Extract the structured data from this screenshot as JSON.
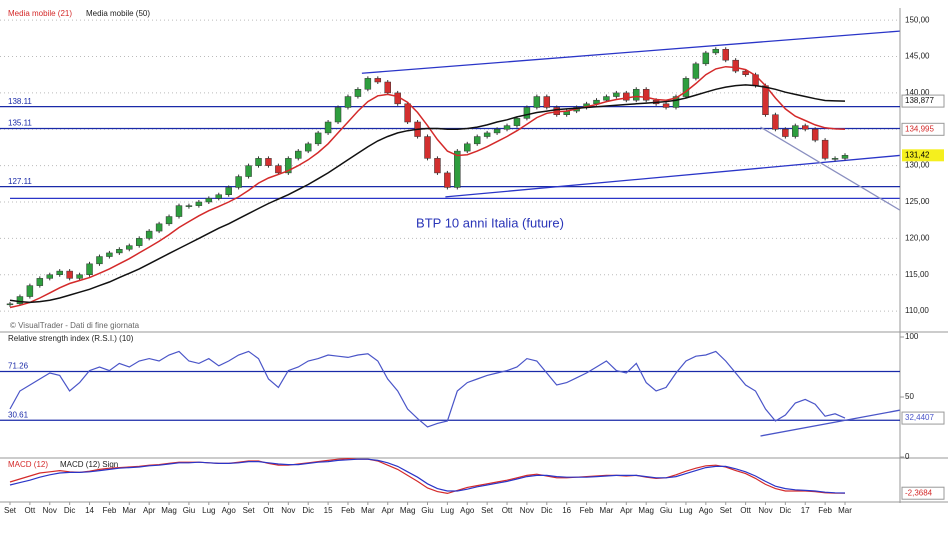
{
  "chart_data": [
    {
      "type": "candlestick",
      "legend": [
        "Media mobile (21)",
        "Media mobile (50)"
      ],
      "annotation": "BTP 10 anni Italia (future)",
      "source": "© VisualTrader - Dati di fine giornata",
      "categories": [
        "Set",
        null,
        "Ott",
        null,
        "Nov",
        null,
        "Dic",
        null,
        "14",
        null,
        "Feb",
        null,
        "Mar",
        null,
        "Apr",
        null,
        "Mag",
        null,
        "Giu",
        null,
        "Lug",
        null,
        "Ago",
        null,
        "Set",
        null,
        "Ott",
        null,
        "Nov",
        null,
        "Dic",
        null,
        "15",
        null,
        "Feb",
        null,
        "Mar",
        null,
        "Apr",
        null,
        "Mag",
        null,
        "Giu",
        null,
        "Lug",
        null,
        "Ago",
        null,
        "Set",
        null,
        "Ott",
        null,
        "Nov",
        null,
        "Dic",
        null,
        "16",
        null,
        "Feb",
        null,
        "Mar",
        null,
        "Apr",
        null,
        "Mag",
        null,
        "Giu",
        null,
        "Lug",
        null,
        "Ago",
        null,
        "Set",
        null,
        "Ott",
        null,
        "Nov",
        null,
        "Dic",
        null,
        "17",
        null,
        "Feb",
        null,
        "Mar"
      ],
      "values": [
        111,
        112,
        113.5,
        114.5,
        115,
        115.5,
        114.5,
        115,
        116.5,
        117.5,
        118,
        118.5,
        119,
        120,
        121,
        122,
        123,
        124.5,
        124.5,
        125,
        125.5,
        126,
        127,
        128.5,
        130,
        131,
        130,
        129,
        131,
        132,
        133,
        134.5,
        136,
        138,
        139.5,
        140.5,
        142,
        141.5,
        140,
        138.5,
        136,
        134,
        131,
        129,
        127,
        132,
        133,
        134,
        134.5,
        135,
        135.5,
        136.5,
        138,
        139.5,
        138,
        137,
        137.5,
        138,
        138.5,
        139,
        139.5,
        140,
        139,
        140.5,
        139,
        138.5,
        138,
        139.5,
        142,
        144,
        145.5,
        146,
        144.5,
        143,
        142.5,
        141,
        137,
        135,
        134,
        135.5,
        135,
        133.5,
        131,
        131,
        131.42
      ],
      "last_label": "131,42",
      "up_color": "#2e9e3e",
      "down_color": "#d32f2f",
      "series": [
        {
          "name": "Media mobile (21)",
          "color": "#d42a2a",
          "last_label": "134,995",
          "values": [
            110.5,
            110.8,
            111.2,
            111.8,
            112.5,
            113.2,
            113.8,
            114.2,
            114.6,
            115.2,
            115.8,
            116.5,
            117.2,
            118,
            118.8,
            119.6,
            120.5,
            121.5,
            122.3,
            123.1,
            123.8,
            124.4,
            125,
            125.7,
            126.6,
            127.6,
            128.3,
            128.8,
            129.3,
            130,
            130.8,
            131.8,
            133,
            134.5,
            136,
            137.5,
            138.8,
            139.6,
            139.8,
            139.5,
            138.7,
            137.3,
            135.5,
            133.6,
            132,
            131.4,
            131.5,
            132,
            132.6,
            133.3,
            134,
            134.8,
            135.7,
            136.6,
            137.2,
            137.4,
            137.5,
            137.8,
            138.1,
            138.4,
            138.8,
            139.1,
            139.3,
            139.5,
            139.4,
            139.1,
            139,
            139.3,
            140.2,
            141.3,
            142.5,
            143.3,
            143.6,
            143.5,
            143.2,
            142.4,
            141,
            139.3,
            137.8,
            136.8,
            136.2,
            135.6,
            135.2,
            135.05,
            134.995
          ]
        },
        {
          "name": "Media mobile (50)",
          "color": "#111111",
          "last_label": "138,877",
          "values": [
            111.5,
            111.3,
            111.2,
            111.3,
            111.5,
            111.8,
            112.2,
            112.6,
            113,
            113.5,
            114,
            114.6,
            115.2,
            115.8,
            116.5,
            117.2,
            117.9,
            118.6,
            119.3,
            120,
            120.7,
            121.4,
            122,
            122.7,
            123.4,
            124.1,
            124.8,
            125.4,
            126,
            126.7,
            127.4,
            128.2,
            129,
            129.9,
            130.8,
            131.7,
            132.6,
            133.4,
            134,
            134.5,
            134.8,
            135,
            135.1,
            135.1,
            135,
            135,
            135.1,
            135.3,
            135.6,
            136,
            136.3,
            136.7,
            137,
            137.3,
            137.5,
            137.7,
            137.8,
            137.9,
            138,
            138.1,
            138.2,
            138.3,
            138.4,
            138.5,
            138.6,
            138.7,
            138.8,
            139,
            139.3,
            139.7,
            140.1,
            140.5,
            140.8,
            141,
            141.1,
            141,
            140.8,
            140.5,
            140.1,
            139.8,
            139.5,
            139.2,
            138.95,
            138.9,
            138.877
          ]
        }
      ],
      "levels": [
        138.11,
        135.11,
        127.11
      ],
      "level_color": "#1a2aa8",
      "trend_lines": [
        {
          "x": [
            35.4,
            89.5
          ],
          "y": [
            142.7,
            148.5
          ],
          "color": "#2a35c8"
        },
        {
          "x": [
            43.8,
            89.5
          ],
          "y": [
            125.7,
            131.4
          ],
          "color": "#2a35c8"
        },
        {
          "x": [
            0,
            89.5
          ],
          "y": [
            125.5,
            125.5
          ],
          "color": "#2a35c8"
        },
        {
          "x": [
            75.5,
            89.5
          ],
          "y": [
            135.3,
            123.9
          ],
          "color": "#8a8fc0"
        }
      ],
      "ylim": [
        107.4,
        151.4
      ],
      "yticks": [
        {
          "value": 110,
          "label": "110,00"
        },
        {
          "value": 115,
          "label": "115,00"
        },
        {
          "value": 120,
          "label": "120,00"
        },
        {
          "value": 125,
          "label": "125,00"
        },
        {
          "value": 130,
          "label": "130,00"
        },
        {
          "value": 135,
          "label": "135,00"
        },
        {
          "value": 140,
          "label": "140,00"
        },
        {
          "value": 145,
          "label": "145,00"
        },
        {
          "value": 150,
          "label": "150,00"
        }
      ],
      "grid": true
    },
    {
      "type": "line",
      "title": "Relative strength index (R.S.I.) (10)",
      "series": [
        {
          "name": "R.S.I.",
          "color": "#4a55c8",
          "last_label": "32,4407",
          "values": [
            40,
            55,
            60,
            65,
            70,
            68,
            55,
            62,
            72,
            75,
            72,
            78,
            75,
            80,
            82,
            80,
            85,
            88,
            80,
            78,
            82,
            76,
            80,
            85,
            88,
            82,
            65,
            58,
            72,
            75,
            80,
            82,
            85,
            84,
            83,
            85,
            86,
            80,
            65,
            55,
            40,
            32,
            25,
            28,
            30,
            55,
            62,
            65,
            68,
            70,
            72,
            75,
            82,
            80,
            70,
            60,
            62,
            66,
            70,
            75,
            80,
            72,
            70,
            78,
            62,
            55,
            58,
            70,
            80,
            84,
            85,
            88,
            80,
            70,
            60,
            55,
            40,
            30,
            35,
            45,
            48,
            44,
            34,
            36,
            32.4407
          ]
        }
      ],
      "levels": [
        71.26,
        30.61
      ],
      "trend_lines": [
        {
          "x": [
            75.5,
            89.5
          ],
          "y": [
            17.5,
            39
          ],
          "color": "#4a55c8"
        }
      ],
      "ylim": [
        0,
        100
      ],
      "yticks": [
        0,
        50,
        100
      ]
    },
    {
      "type": "line",
      "series": [
        {
          "name": "MACD (12)",
          "color": "#d42a2a",
          "last_label": "-2,3684",
          "values": [
            -0.5,
            0,
            0.5,
            1,
            1.2,
            1.4,
            1.2,
            1.1,
            1.3,
            1.6,
            1.8,
            1.9,
            2,
            2.1,
            2.3,
            2.4,
            2.6,
            2.8,
            2.8,
            2.8,
            2.7,
            2.6,
            2.6,
            2.8,
            3,
            3,
            2.6,
            2.3,
            2.3,
            2.5,
            2.7,
            2.9,
            3.1,
            3.3,
            3.4,
            3.3,
            3.3,
            3,
            2.3,
            1.6,
            0.6,
            -0.4,
            -1.5,
            -2.1,
            -2.4,
            -1.9,
            -1.4,
            -1.1,
            -0.8,
            -0.5,
            -0.2,
            0.2,
            0.6,
            0.8,
            0.5,
            0.2,
            0.2,
            0.3,
            0.4,
            0.5,
            0.6,
            0.6,
            0.5,
            0.6,
            0.3,
            0.1,
            0.2,
            0.7,
            1.3,
            1.8,
            2.2,
            2.3,
            2,
            1.4,
            0.9,
            0.1,
            -0.9,
            -1.6,
            -2,
            -2,
            -2,
            -2.1,
            -2.3,
            -2.35,
            -2.3684
          ]
        },
        {
          "name": "MACD (12) Sign",
          "color": "#2a35c8",
          "values": [
            -1,
            -0.6,
            -0.2,
            0.3,
            0.7,
            1,
            1.1,
            1.1,
            1.2,
            1.4,
            1.6,
            1.8,
            1.9,
            2,
            2.2,
            2.3,
            2.5,
            2.7,
            2.7,
            2.8,
            2.7,
            2.6,
            2.6,
            2.7,
            2.9,
            2.9,
            2.7,
            2.5,
            2.4,
            2.4,
            2.6,
            2.8,
            2.9,
            3.1,
            3.2,
            3.3,
            3.3,
            3.1,
            2.7,
            2.1,
            1.2,
            0.3,
            -0.8,
            -1.6,
            -2,
            -2,
            -1.7,
            -1.3,
            -1,
            -0.7,
            -0.4,
            0,
            0.4,
            0.6,
            0.6,
            0.4,
            0.3,
            0.3,
            0.3,
            0.4,
            0.5,
            0.6,
            0.6,
            0.6,
            0.4,
            0.2,
            0.2,
            0.4,
            0.9,
            1.4,
            1.9,
            2.1,
            2.1,
            1.7,
            1.2,
            0.5,
            -0.4,
            -1.2,
            -1.6,
            -1.8,
            -1.9,
            -2,
            -2.2,
            -2.3,
            -2.34
          ]
        }
      ],
      "ylim": [
        -3.5,
        3.5
      ]
    }
  ]
}
